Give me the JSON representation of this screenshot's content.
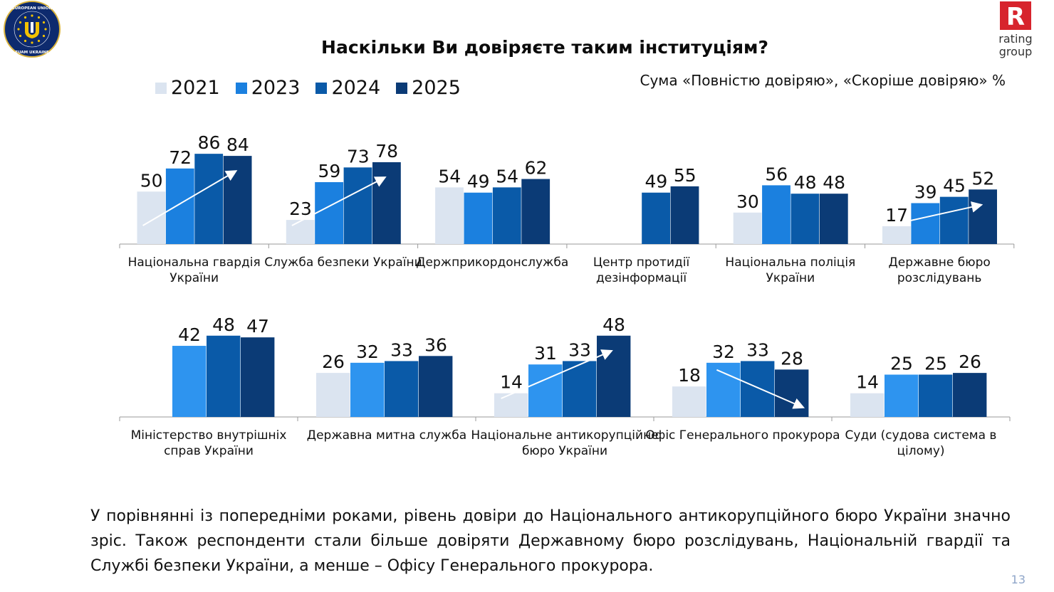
{
  "header": {
    "title": "Наскільки Ви довіряєте таким інституціям?",
    "subtitle": "Сума «Повністю довіряю», «Скоріше довіряю» %",
    "logo_left": {
      "top_text": "EUROPEAN UNION",
      "bottom_text": "EUAM UKRAINE"
    },
    "logo_right": {
      "letter": "R",
      "line1": "rating",
      "line2": "group"
    }
  },
  "colors": {
    "2021": "#dbe4f0",
    "2023": "#1b80df",
    "2024": "#0a5aa8",
    "2025": "#0b3b76",
    "2023_bottom_row": "#2e94ef"
  },
  "chart_data": {
    "type": "bar",
    "legend": [
      "2021",
      "2023",
      "2024",
      "2025"
    ],
    "series_years": [
      "2021",
      "2023",
      "2024",
      "2025"
    ],
    "rows": [
      {
        "groups": [
          {
            "label": "Національна гвардія України",
            "values": [
              50,
              72,
              86,
              84
            ],
            "trend": "up"
          },
          {
            "label": "Служба безпеки України",
            "values": [
              23,
              59,
              73,
              78
            ],
            "trend": "up"
          },
          {
            "label": "Держприкордонслужба",
            "values": [
              54,
              49,
              54,
              62
            ]
          },
          {
            "label": "Центр протидії дезінформації",
            "values": [
              null,
              null,
              49,
              55
            ]
          },
          {
            "label": "Національна поліція України",
            "values": [
              30,
              56,
              48,
              48
            ]
          },
          {
            "label": "Державне бюро розслідувань",
            "values": [
              17,
              39,
              45,
              52
            ],
            "trend": "up"
          }
        ]
      },
      {
        "groups": [
          {
            "label": "Міністерство внутрішніх справ України",
            "values": [
              null,
              42,
              48,
              47
            ]
          },
          {
            "label": "Державна митна служба",
            "values": [
              26,
              32,
              33,
              36
            ]
          },
          {
            "label": "Національне антикорупційне бюро України",
            "values": [
              14,
              31,
              33,
              48
            ],
            "trend": "up"
          },
          {
            "label": "Офіс Генерального прокурора",
            "values": [
              18,
              32,
              33,
              28
            ],
            "trend": "down"
          },
          {
            "label": "Суди (судова система в цілому)",
            "values": [
              14,
              25,
              25,
              26
            ]
          }
        ]
      }
    ]
  },
  "note": "У порівнянні із попередніми роками, рівень довіри до Національного антикорупційного бюро України значно зріс. Також респонденти стали більше довіряти Державному бюро розслідувань, Національній гвардії та Службі безпеки України, а менше – Офісу Генерального прокурора.",
  "page_number": "13"
}
